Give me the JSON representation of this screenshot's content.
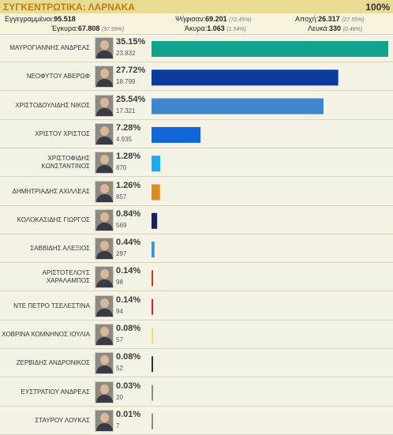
{
  "header": {
    "title": "ΣΥΓΚΕΝΤΡΩΤΙΚΑ: ΛΑΡΝΑΚΑ",
    "percent_counted": "100%"
  },
  "stats": {
    "registered_label": "Εγγεγραμμένοι:",
    "registered_value": "95.518",
    "voted_label": "Ψήφισαν:",
    "voted_value": "69.201",
    "voted_pct": "(72.45%)",
    "abstention_label": "Αποχή:",
    "abstention_value": "26.317",
    "abstention_pct": "(27.55%)",
    "valid_label": "Έγκυρα:",
    "valid_value": "67.808",
    "valid_pct": "(97.99%)",
    "invalid_label": "Άκυρα:",
    "invalid_value": "1.063",
    "invalid_pct": "(1.54%)",
    "blank_label": "Λευκά:",
    "blank_value": "330",
    "blank_pct": "(0.48%)"
  },
  "chart_data": {
    "type": "bar",
    "orientation": "horizontal",
    "categories": [
      "ΜΑΥΡΟΓΙΑΝΝΗΣ ΑΝΔΡΕΑΣ",
      "ΝΕΟΦΥΤΟΥ ΑΒΕΡΩΦ",
      "ΧΡΙΣΤΟΔΟΥΛΙΔΗΣ ΝΙΚΟΣ",
      "ΧΡΙΣΤΟΥ ΧΡΙΣΤΟΣ",
      "ΧΡΙΣΤΟΦΙΔΗΣ ΚΩΝΣΤΑΝΤΙΝΟΣ",
      "ΔΗΜΗΤΡΙΑΔΗΣ ΑΧΙΛΛΕΑΣ",
      "ΚΟΛΟΚΑΣΙΔΗΣ ΓΙΩΡΓΟΣ",
      "ΣΑΒΒΙΔΗΣ ΑΛΕΞΙΟΣ",
      "ΑΡΙΣΤΟΤΕΛΟΥΣ ΧΑΡΑΛΑΜΠΟΣ",
      "ΝΤΕ ΠΕΤΡΟ ΤΣΕΛΕΣΤΙΝΑ",
      "ΧΟΒΡΙΝΑ ΚΟΜΝΗΝΟΣ ΙΟΥΛΙΑ",
      "ΖΕΡΒΙΔΗΣ ΑΝΔΡΟΝΙΚΟΣ",
      "ΕΥΣΤΡΑΤΙΟΥ ΑΝΔΡΕΑΣ",
      "ΣΤΑΥΡΟΥ ΛΟΥΚΑΣ"
    ],
    "percent_labels": [
      "35.15%",
      "27.72%",
      "25.54%",
      "7.28%",
      "1.28%",
      "1.26%",
      "0.84%",
      "0.44%",
      "0.14%",
      "0.14%",
      "0.08%",
      "0.08%",
      "0.03%",
      "0.01%"
    ],
    "percent_values": [
      35.15,
      27.72,
      25.54,
      7.28,
      1.28,
      1.26,
      0.84,
      0.44,
      0.14,
      0.14,
      0.08,
      0.08,
      0.03,
      0.01
    ],
    "vote_labels": [
      "23.832",
      "18.799",
      "17.321",
      "4.935",
      "870",
      "857",
      "569",
      "297",
      "98",
      "94",
      "57",
      "52",
      "20",
      "7"
    ],
    "colors": [
      "#12a38f",
      "#0a3a9c",
      "#3f86cf",
      "#1166d8",
      "#1eaae6",
      "#d98c2b",
      "#1b1f5e",
      "#3c8fd6",
      "#c0392b",
      "#d12a2a",
      "#f2e24a",
      "#2a2f48",
      "#8d8d8d",
      "#8d8d8d"
    ],
    "xlim": [
      0,
      35.15
    ],
    "grid": false
  }
}
